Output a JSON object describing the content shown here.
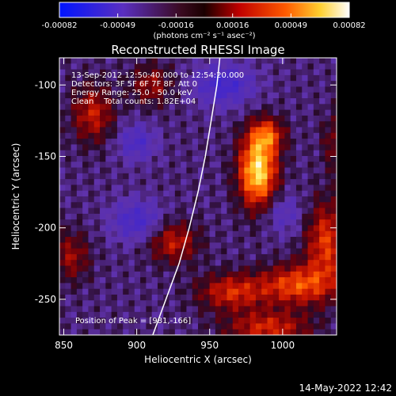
{
  "colorbar": {
    "tick_labels": [
      "-0.00082",
      "-0.00049",
      "-0.00016",
      "0.00016",
      "0.00049",
      "0.00082"
    ],
    "tick_values": [
      -0.00082,
      -0.00049,
      -0.00016,
      0.00016,
      0.00049,
      0.00082
    ],
    "range": [
      -0.00082,
      0.00082
    ],
    "units_label": "(photons cm⁻² s⁻¹ asec⁻²)",
    "colormap": "blue-purple-red-orange-yellow-white"
  },
  "chart_data": {
    "type": "heatmap",
    "title": "Reconstructed RHESSI Image",
    "xlabel": "Heliocentric X (arcsec)",
    "ylabel": "Heliocentric Y (arcsec)",
    "xlim": [
      847,
      1037
    ],
    "ylim": [
      -275,
      -81
    ],
    "xticks": [
      850,
      900,
      950,
      1000
    ],
    "yticks": [
      -100,
      -150,
      -200,
      -250
    ],
    "annotations": [
      "13-Sep-2012 12:50:40.000 to 12:54:20.000",
      "Detectors: 3F 5F 6F 7F 8F, Att 0",
      "Energy Range: 25.0 - 50.0 keV",
      "Clean    Total counts: 1.82E+04"
    ],
    "peak_label": "Position of Peak = [981,-166]",
    "peak": [
      981,
      -166
    ],
    "limb_curve": [
      [
        911,
        -275
      ],
      [
        920,
        -250
      ],
      [
        929,
        -225
      ],
      [
        936,
        -200
      ],
      [
        942,
        -175
      ],
      [
        947,
        -150
      ],
      [
        951,
        -125
      ],
      [
        955,
        -100
      ],
      [
        957,
        -81
      ]
    ],
    "sources": [
      {
        "x": 983,
        "y": -160,
        "sx": 9,
        "sy": 18,
        "amp": 1.0
      },
      {
        "x": 990,
        "y": -135,
        "sx": 8,
        "sy": 8,
        "amp": 0.5
      },
      {
        "x": 1030,
        "y": -210,
        "sx": 10,
        "sy": 20,
        "amp": 0.55
      },
      {
        "x": 1010,
        "y": -240,
        "sx": 18,
        "sy": 10,
        "amp": 0.6
      },
      {
        "x": 965,
        "y": -245,
        "sx": 16,
        "sy": 9,
        "amp": 0.5
      },
      {
        "x": 925,
        "y": -210,
        "sx": 12,
        "sy": 10,
        "amp": 0.45
      },
      {
        "x": 870,
        "y": -120,
        "sx": 10,
        "sy": 14,
        "amp": 0.45
      },
      {
        "x": 910,
        "y": -100,
        "sx": 10,
        "sy": 10,
        "amp": 0.35
      },
      {
        "x": 855,
        "y": -220,
        "sx": 9,
        "sy": 12,
        "amp": 0.35
      },
      {
        "x": 1040,
        "y": -140,
        "sx": 8,
        "sy": 14,
        "amp": 0.35
      },
      {
        "x": 990,
        "y": -270,
        "sx": 20,
        "sy": 8,
        "amp": 0.5
      },
      {
        "x": 900,
        "y": -140,
        "sx": 9,
        "sy": 9,
        "amp": -0.35
      },
      {
        "x": 960,
        "y": -100,
        "sx": 14,
        "sy": 10,
        "amp": -0.45
      },
      {
        "x": 900,
        "y": -195,
        "sx": 12,
        "sy": 10,
        "amp": -0.4
      },
      {
        "x": 1000,
        "y": -190,
        "sx": 10,
        "sy": 10,
        "amp": -0.25
      }
    ]
  },
  "footer": {
    "timestamp": "14-May-2022 12:42"
  }
}
